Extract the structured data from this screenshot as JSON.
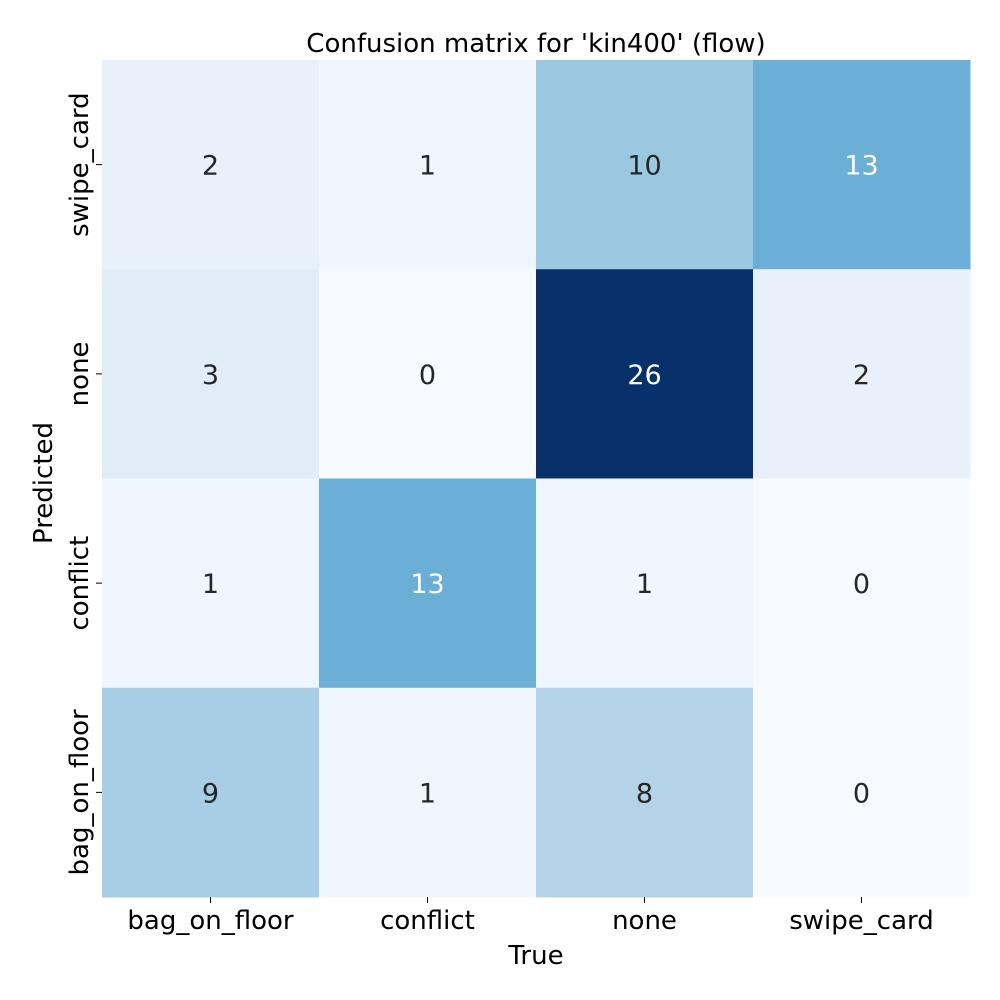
{
  "chart_data": {
    "type": "heatmap",
    "title": "Confusion matrix for 'kin400' (flow)",
    "xlabel": "True",
    "ylabel": "Predicted",
    "x_categories": [
      "bag_on_floor",
      "conflict",
      "none",
      "swipe_card"
    ],
    "y_categories": [
      "swipe_card",
      "none",
      "conflict",
      "bag_on_floor"
    ],
    "values": [
      [
        2,
        1,
        10,
        13
      ],
      [
        3,
        0,
        26,
        2
      ],
      [
        1,
        13,
        1,
        0
      ],
      [
        9,
        1,
        8,
        0
      ]
    ],
    "colormap": "Blues",
    "vmin": 0,
    "vmax": 26,
    "colorbar": false,
    "grid": false
  }
}
